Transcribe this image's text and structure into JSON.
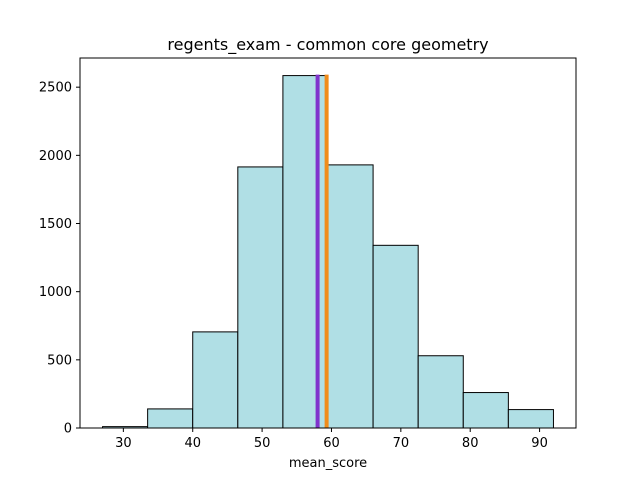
{
  "chart_data": {
    "type": "bar",
    "title": "regents_exam - common core geometry",
    "xlabel": "mean_score",
    "ylabel": "",
    "bin_edges": [
      27.0,
      33.5,
      40.0,
      46.5,
      53.0,
      59.5,
      66.0,
      72.5,
      79.0,
      85.5,
      92.0
    ],
    "values": [
      10,
      140,
      705,
      1915,
      2585,
      1930,
      1340,
      530,
      260,
      135
    ],
    "xlim": [
      23.75,
      95.25
    ],
    "ylim": [
      0,
      2714
    ],
    "xticks": [
      30,
      40,
      50,
      60,
      70,
      80,
      90
    ],
    "yticks": [
      0,
      500,
      1000,
      1500,
      2000,
      2500
    ],
    "reference_lines": [
      {
        "label": "",
        "x": 58.0,
        "color": "#8033cc"
      },
      {
        "label": "",
        "x": 59.3,
        "color": "#f08c1a"
      }
    ],
    "bar_color": "#b0dfe5",
    "edge_color": "#000000",
    "grid": false
  }
}
